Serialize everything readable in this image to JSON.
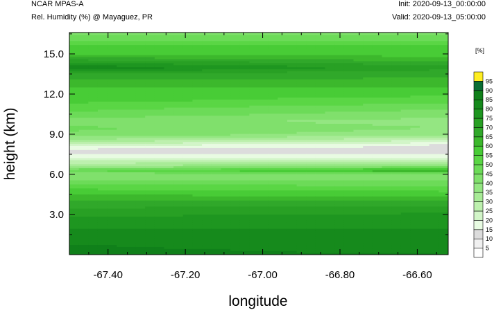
{
  "header": {
    "model": "NCAR MPAS-A",
    "field": "Rel. Humidity (%) @ Mayaguez, PR",
    "init": "Init: 2020-09-13_00:00:00",
    "valid": "Valid: 2020-09-13_05:00:00"
  },
  "chart_data": {
    "type": "heatmap",
    "xlabel": "longitude",
    "ylabel": "height (km)",
    "xlim": [
      -67.5,
      -66.52
    ],
    "ylim": [
      0,
      16.6
    ],
    "x_ticks": [
      -67.4,
      -67.2,
      -67.0,
      -66.8,
      -66.6
    ],
    "x_tick_labels": [
      "-67.40",
      "-67.20",
      "-67.00",
      "-66.80",
      "-66.60"
    ],
    "y_ticks": [
      3,
      6,
      9,
      12,
      15
    ],
    "y_tick_labels": [
      "3.0",
      "6.0",
      "9.0",
      "12.0",
      "15.0"
    ],
    "colorbar": {
      "unit": "[%]",
      "levels": [
        5,
        10,
        15,
        20,
        25,
        30,
        35,
        40,
        45,
        50,
        55,
        60,
        65,
        70,
        75,
        80,
        85,
        90,
        95
      ],
      "level_labels": [
        "5",
        "10",
        "15",
        "20",
        "25",
        "30",
        "35",
        "40",
        "45",
        "50",
        "55",
        "60",
        "65",
        "70",
        "75",
        "80",
        "85",
        "90",
        "95"
      ],
      "colors": [
        "#ffffff",
        "#f0f0f0",
        "#dcdcdc",
        "#e8fbe2",
        "#d2f5c8",
        "#bdf0ae",
        "#a8eb97",
        "#94e682",
        "#80e06c",
        "#6cdb58",
        "#5ad645",
        "#48cc36",
        "#3cb82c",
        "#30a82a",
        "#28a024",
        "#1e9620",
        "#168a1c",
        "#10801a",
        "#0a6e34",
        "#ffee22"
      ]
    },
    "profile": {
      "description_heights_km": [
        0.0,
        0.3,
        0.6,
        1.0,
        1.5,
        2.0,
        2.5,
        3.0,
        3.5,
        4.0,
        4.5,
        5.0,
        5.5,
        6.0,
        6.3,
        6.6,
        7.0,
        7.4,
        7.8,
        8.2,
        8.6,
        9.0,
        9.5,
        10.0,
        10.5,
        11.0,
        11.5,
        12.0,
        12.5,
        13.0,
        13.5,
        14.0,
        14.5,
        15.0,
        15.5,
        16.0,
        16.6
      ],
      "rh_west_pct": [
        88,
        88,
        86,
        84,
        83,
        80,
        78,
        74,
        70,
        66,
        60,
        54,
        46,
        40,
        50,
        36,
        26,
        16,
        12,
        22,
        34,
        44,
        46,
        42,
        48,
        52,
        56,
        58,
        60,
        64,
        68,
        84,
        72,
        58,
        60,
        50,
        44
      ],
      "rh_east_pct": [
        86,
        82,
        80,
        80,
        80,
        80,
        78,
        76,
        72,
        66,
        58,
        52,
        46,
        40,
        66,
        44,
        28,
        16,
        14,
        14,
        26,
        36,
        40,
        38,
        42,
        46,
        52,
        56,
        60,
        64,
        66,
        72,
        64,
        58,
        58,
        50,
        44
      ]
    }
  }
}
